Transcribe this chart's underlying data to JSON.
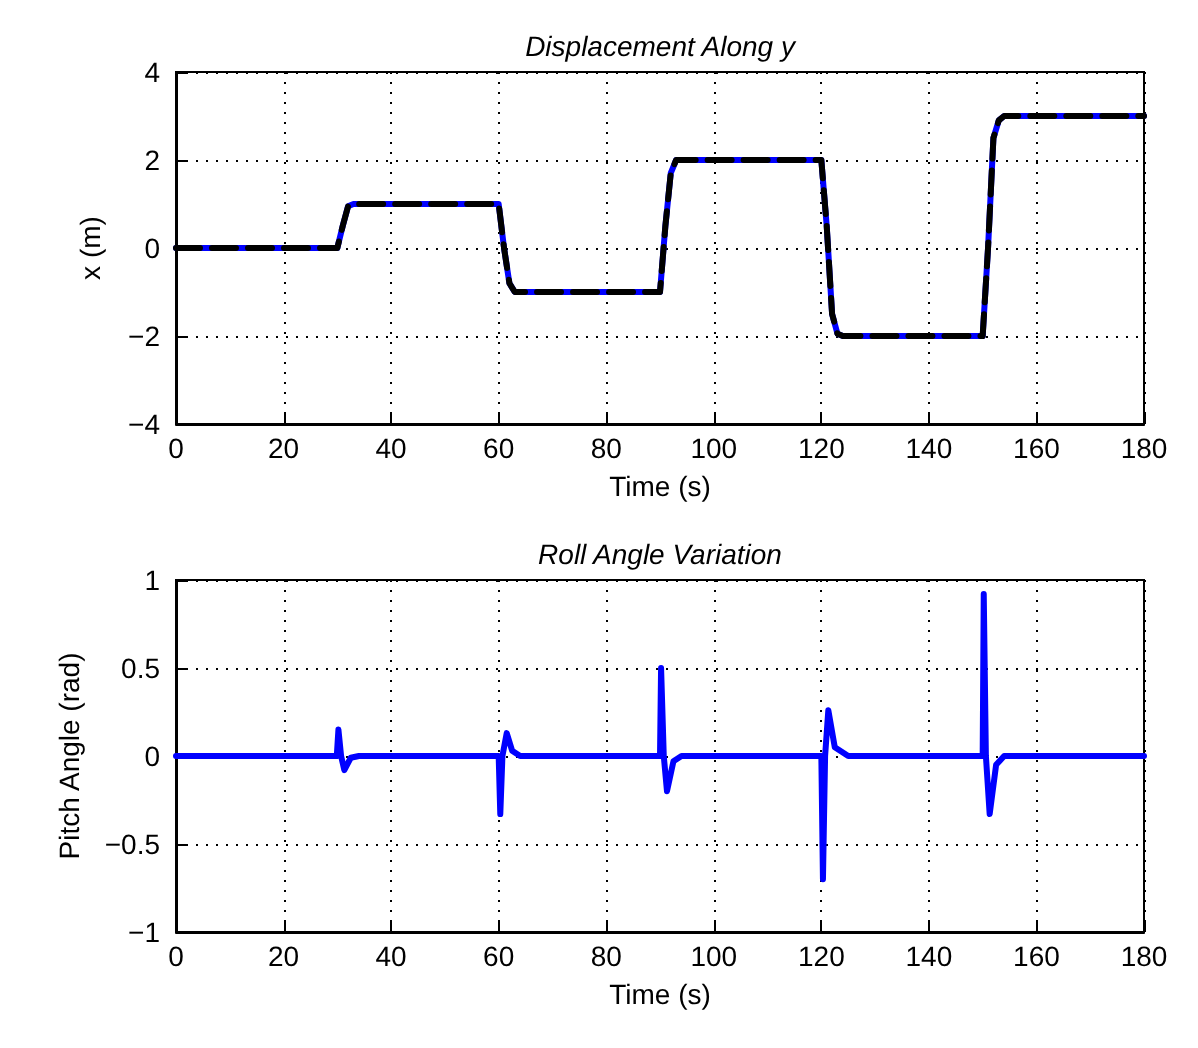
{
  "chart_data": [
    {
      "type": "line",
      "title": "Displacement Along y",
      "xlabel": "Time (s)",
      "ylabel": "x (m)",
      "xlim": [
        0,
        180
      ],
      "xticks": [
        0,
        20,
        40,
        60,
        80,
        100,
        120,
        140,
        160,
        180
      ],
      "ylim": [
        -4,
        4
      ],
      "yticks": [
        {
          "value": -4,
          "label": "−4"
        },
        {
          "value": -2,
          "label": "−2"
        },
        0,
        2,
        4
      ],
      "grid": true,
      "marker": "none",
      "series": [
        {
          "color": "#0000ff",
          "line_style": "solid",
          "x": [
            0,
            30,
            31,
            32,
            33,
            60,
            61,
            62,
            63,
            90,
            91,
            92,
            93,
            120,
            121,
            122,
            123,
            124,
            150,
            151,
            152,
            153,
            154,
            180
          ],
          "values": [
            0,
            0,
            0.5,
            0.95,
            1,
            1,
            0,
            -0.8,
            -1,
            -1,
            0.5,
            1.7,
            2,
            2,
            0.5,
            -1.5,
            -1.95,
            -2,
            -2,
            0,
            2.5,
            2.9,
            3,
            3
          ]
        },
        {
          "color": "#000000",
          "line_style": "dashed",
          "x": [
            0,
            30,
            31,
            32,
            33,
            60,
            61,
            62,
            63,
            90,
            91,
            92,
            93,
            120,
            121,
            122,
            123,
            124,
            150,
            151,
            152,
            153,
            154,
            180
          ],
          "values": [
            0,
            0,
            0.5,
            0.95,
            1,
            1,
            0,
            -0.8,
            -1,
            -1,
            0.5,
            1.7,
            2,
            2,
            0.5,
            -1.5,
            -1.95,
            -2,
            -2,
            0,
            2.5,
            2.9,
            3,
            3
          ]
        }
      ]
    },
    {
      "type": "line",
      "title": "Roll Angle Variation",
      "xlabel": "Time (s)",
      "ylabel": "Pitch Angle (rad)",
      "xlim": [
        0,
        180
      ],
      "xticks": [
        0,
        20,
        40,
        60,
        80,
        100,
        120,
        140,
        160,
        180
      ],
      "ylim": [
        -1,
        1
      ],
      "yticks": [
        {
          "value": -1,
          "label": "−1"
        },
        {
          "value": -0.5,
          "label": "−0.5"
        },
        0,
        0.5,
        1
      ],
      "grid": true,
      "marker": "none",
      "series": [
        {
          "color": "#0000ff",
          "line_style": "solid",
          "x": [
            0,
            29.9,
            30.2,
            30.7,
            31.3,
            32.5,
            34,
            60,
            60.3,
            60.7,
            61.5,
            62.5,
            64,
            90,
            90.2,
            90.7,
            91.3,
            92.5,
            94,
            120,
            120.3,
            120.7,
            121.3,
            122.5,
            125,
            150,
            150.2,
            150.6,
            151.3,
            152.5,
            154,
            180
          ],
          "values": [
            0,
            0,
            0.15,
            0,
            -0.08,
            -0.01,
            0,
            0,
            -0.33,
            0,
            0.13,
            0.03,
            0,
            0,
            0.5,
            0,
            -0.2,
            -0.03,
            0,
            0,
            -0.7,
            0,
            0.26,
            0.05,
            0,
            0,
            0.92,
            0,
            -0.33,
            -0.05,
            0,
            0
          ]
        }
      ]
    }
  ]
}
